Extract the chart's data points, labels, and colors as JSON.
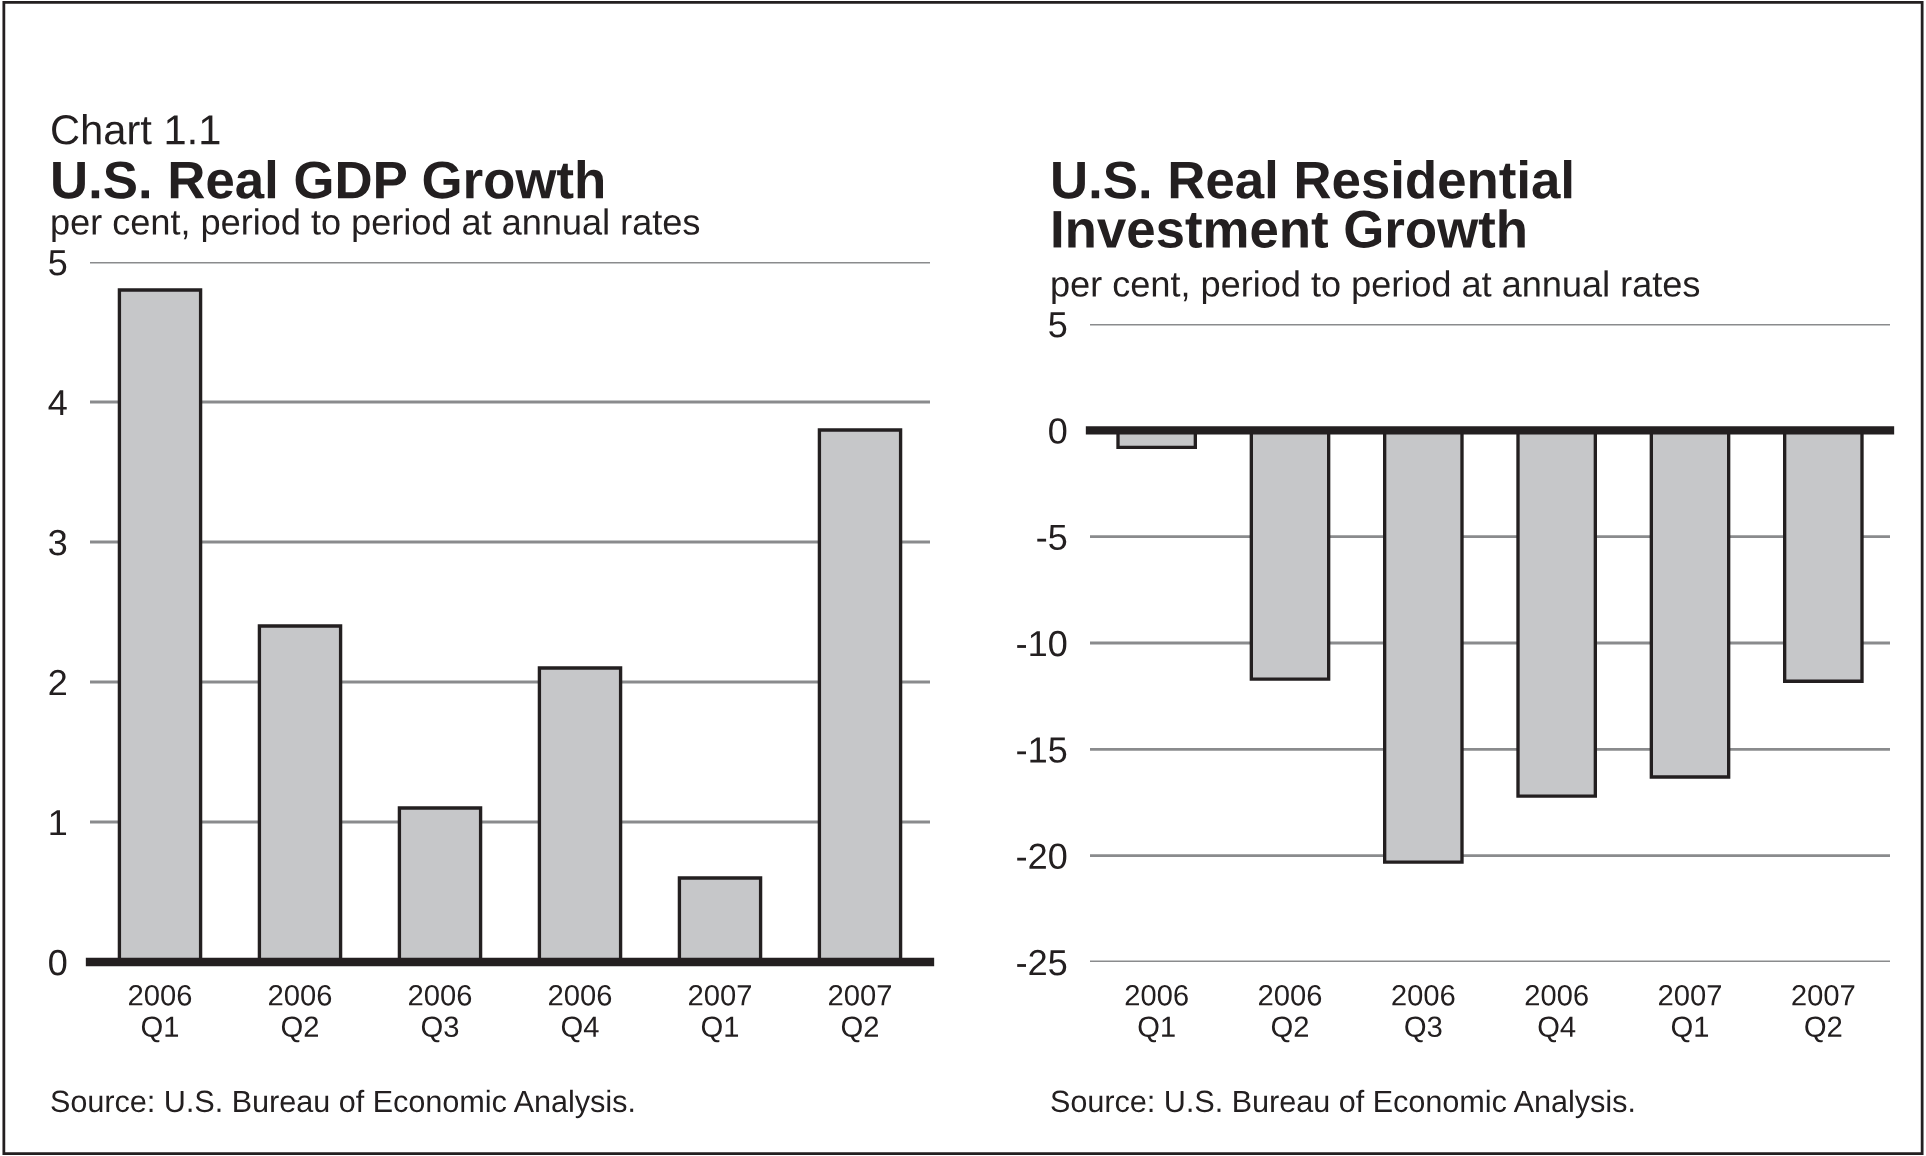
{
  "chart_data": [
    {
      "type": "bar",
      "title": "U.S. Real GDP Growth",
      "ylabel": "per cent, period to period at annual rates",
      "categories": [
        "2006\nQ1",
        "2006\nQ2",
        "2006\nQ3",
        "2006\nQ4",
        "2007\nQ1",
        "2007\nQ2"
      ],
      "values": [
        4.8,
        2.4,
        1.1,
        2.1,
        0.6,
        3.8
      ],
      "color": "#c6c7c9",
      "ylim": [
        0,
        5
      ],
      "yticks": [
        0,
        1,
        2,
        3,
        4,
        5
      ],
      "grid": "y",
      "annotations": [
        "Chart 1.1",
        "Source: U.S. Bureau of Economic Analysis."
      ]
    },
    {
      "type": "bar",
      "title": "U.S. Real Residential\nInvestment Growth",
      "ylabel": "per cent, period to period at annual rates",
      "categories": [
        "2006\nQ1",
        "2006\nQ2",
        "2006\nQ3",
        "2006\nQ4",
        "2007\nQ1",
        "2007\nQ2"
      ],
      "values": [
        -0.8,
        -11.7,
        -20.3,
        -17.2,
        -16.3,
        -11.8
      ],
      "color": "#c6c7c9",
      "ylim": [
        -25,
        5
      ],
      "yticks": [
        -25,
        -20,
        -15,
        -10,
        -5,
        0,
        5
      ],
      "grid": "y",
      "ref_lines": [
        {
          "axis": "y",
          "value": 0,
          "color": "#231f20"
        }
      ],
      "annotations": [
        "Source: U.S. Bureau of Economic Analysis."
      ]
    }
  ]
}
